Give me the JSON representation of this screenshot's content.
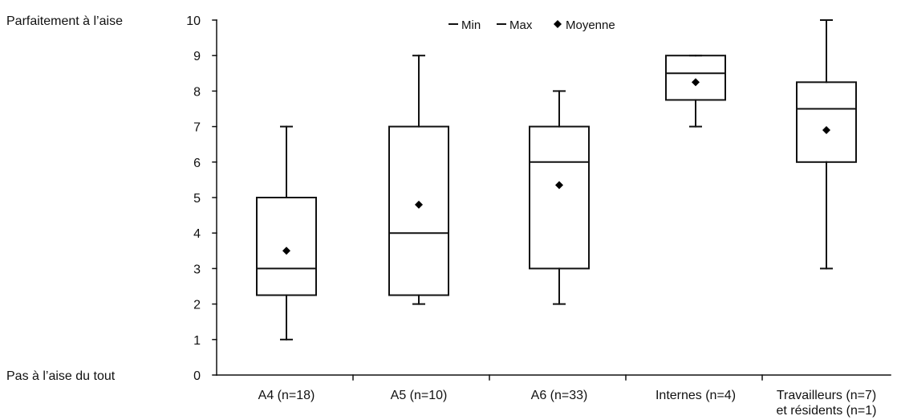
{
  "chart_data": {
    "type": "box",
    "title": "",
    "xlabel": "",
    "ylabel": "",
    "ylim": [
      0,
      10
    ],
    "y_ticks": [
      0,
      1,
      2,
      3,
      4,
      5,
      6,
      7,
      8,
      9,
      10
    ],
    "y_anchor_labels": {
      "top": "Parfaitement à l’aise",
      "bottom": "Pas à l’aise du tout"
    },
    "legend": {
      "placement": "top-center",
      "items": [
        "Min",
        "Max",
        "Moyenne"
      ]
    },
    "categories": [
      [
        "A4 (n=18)"
      ],
      [
        "A5 (n=10)"
      ],
      [
        "A6 (n=33)"
      ],
      [
        "Internes (n=4)"
      ],
      [
        "Travailleurs (n=7)",
        "et résidents (n=1)"
      ]
    ],
    "boxes": [
      {
        "min": 1,
        "q1": 2.25,
        "median": 3,
        "q3": 5,
        "max": 7,
        "mean": 3.5
      },
      {
        "min": 2,
        "q1": 2.25,
        "median": 4,
        "q3": 7,
        "max": 9,
        "mean": 4.8
      },
      {
        "min": 2,
        "q1": 3,
        "median": 6,
        "q3": 7,
        "max": 8,
        "mean": 5.35
      },
      {
        "min": 7,
        "q1": 7.75,
        "median": 8.5,
        "q3": 9,
        "max": 9,
        "mean": 8.25
      },
      {
        "min": 3,
        "q1": 6,
        "median": 7.5,
        "q3": 8.25,
        "max": 10,
        "mean": 6.9
      }
    ],
    "colors": {
      "stroke": "#111111",
      "background": "#ffffff",
      "marker": "#000000"
    }
  }
}
